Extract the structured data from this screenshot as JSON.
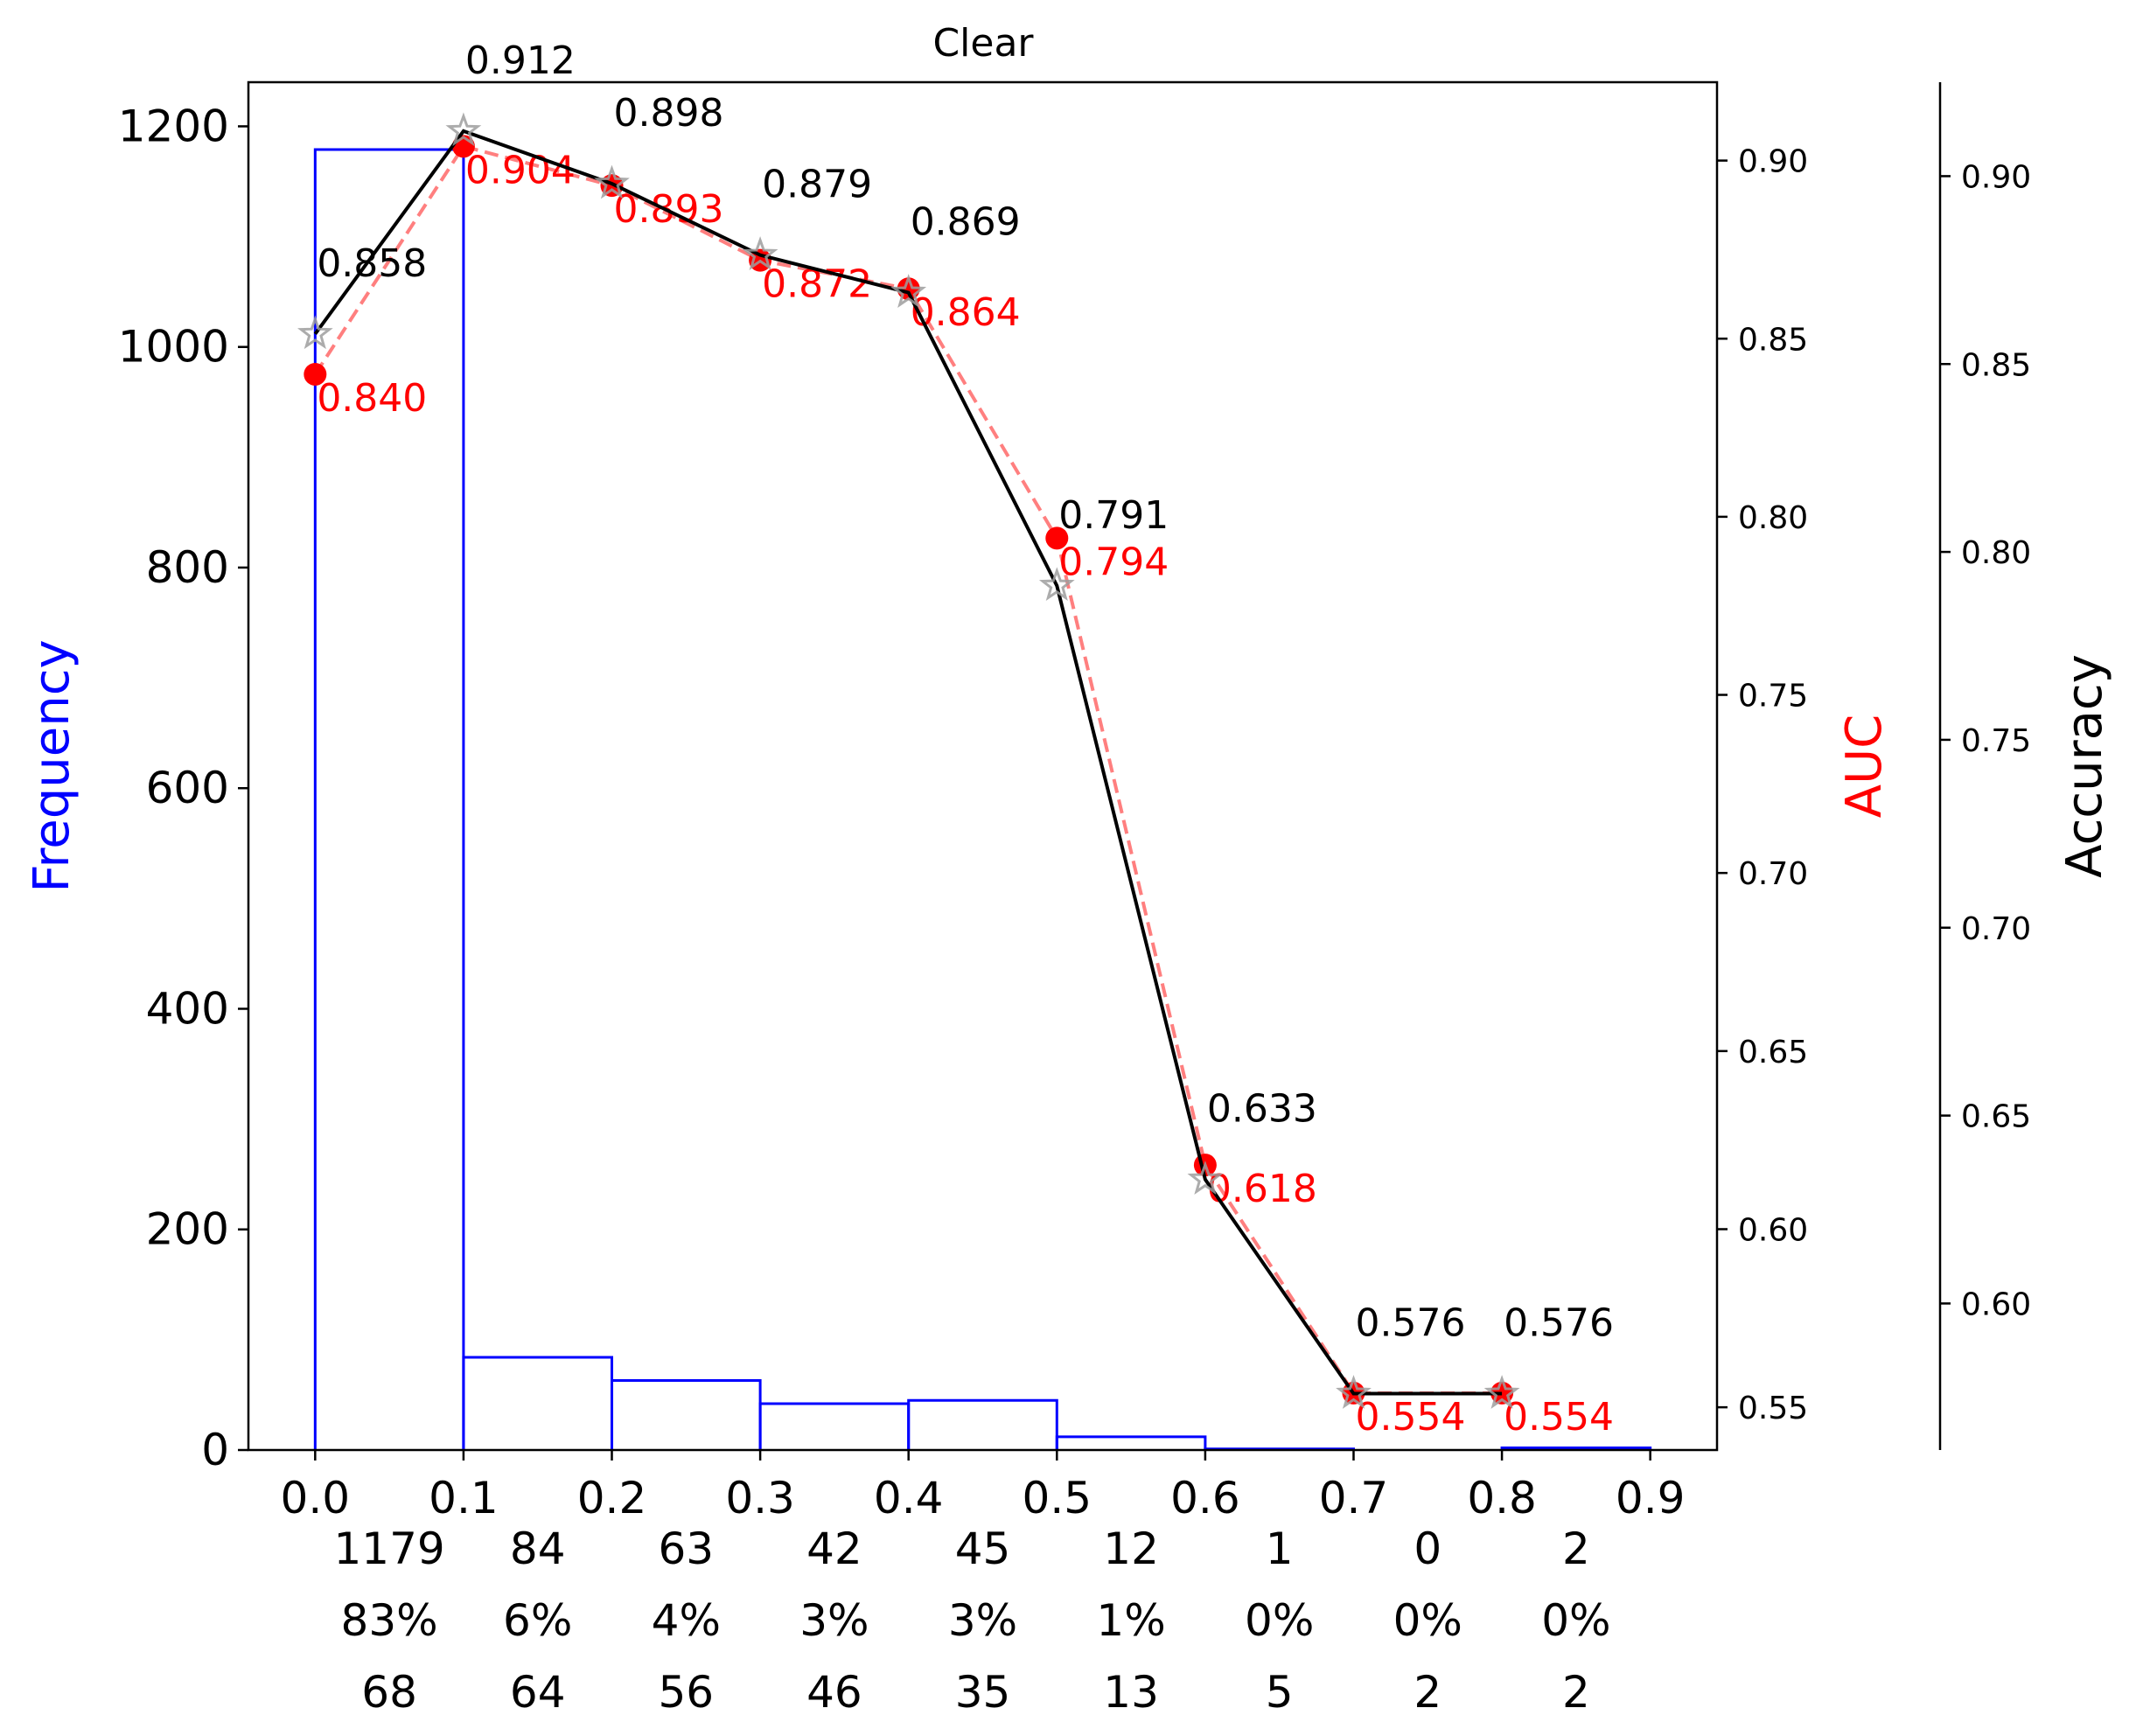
{
  "chart_data": {
    "type": "bar",
    "title": "Clear",
    "xlabel": "",
    "x_ticks": [
      "0.0",
      "0.1",
      "0.2",
      "0.3",
      "0.4",
      "0.5",
      "0.6",
      "0.7",
      "0.8",
      "0.9"
    ],
    "xlim": [
      -0.045,
      0.945
    ],
    "bins": [
      {
        "left": 0.0,
        "right": 0.1,
        "frequency": 1179
      },
      {
        "left": 0.1,
        "right": 0.2,
        "frequency": 84
      },
      {
        "left": 0.2,
        "right": 0.3,
        "frequency": 63
      },
      {
        "left": 0.3,
        "right": 0.4,
        "frequency": 42
      },
      {
        "left": 0.4,
        "right": 0.5,
        "frequency": 45
      },
      {
        "left": 0.5,
        "right": 0.6,
        "frequency": 12
      },
      {
        "left": 0.6,
        "right": 0.7,
        "frequency": 1
      },
      {
        "left": 0.7,
        "right": 0.8,
        "frequency": 0
      },
      {
        "left": 0.8,
        "right": 0.9,
        "frequency": 2
      }
    ],
    "frequency_axis": {
      "label": "Frequency",
      "ylim": [
        0,
        1240
      ],
      "ticks": [
        0,
        200,
        400,
        600,
        800,
        1000,
        1200
      ]
    },
    "auc_axis": {
      "label": "AUC",
      "ylim": [
        0.538,
        0.922
      ],
      "ticks": [
        "0.55",
        "0.60",
        "0.65",
        "0.70",
        "0.75",
        "0.80",
        "0.85",
        "0.90"
      ]
    },
    "accuracy_axis": {
      "label": "Accuracy",
      "ylim": [
        0.561,
        0.925
      ],
      "ticks": [
        "0.60",
        "0.65",
        "0.70",
        "0.75",
        "0.80",
        "0.85",
        "0.90"
      ]
    },
    "series": [
      {
        "name": "AUC",
        "color": "#ff0000",
        "style": "dashed line with circle markers",
        "x": [
          0.0,
          0.1,
          0.2,
          0.3,
          0.4,
          0.5,
          0.6,
          0.7,
          0.8
        ],
        "values": [
          0.84,
          0.904,
          0.893,
          0.872,
          0.864,
          0.794,
          0.618,
          0.554,
          0.554
        ],
        "labels": [
          "0.840",
          "0.904",
          "0.893",
          "0.872",
          "0.864",
          "0.794",
          "0.618",
          "0.554",
          "0.554"
        ]
      },
      {
        "name": "Accuracy",
        "color": "#000000",
        "style": "solid line with star markers",
        "x": [
          0.0,
          0.1,
          0.2,
          0.3,
          0.4,
          0.5,
          0.6,
          0.7,
          0.8
        ],
        "values": [
          0.858,
          0.912,
          0.898,
          0.879,
          0.869,
          0.791,
          0.633,
          0.576,
          0.576
        ],
        "labels": [
          "0.858",
          "0.912",
          "0.898",
          "0.879",
          "0.869",
          "0.791",
          "0.633",
          "0.576",
          "0.576"
        ]
      }
    ],
    "bin_annotations": {
      "counts": [
        "1179",
        "84",
        "63",
        "42",
        "45",
        "12",
        "1",
        "0",
        "2"
      ],
      "percentages": [
        "83%",
        "6%",
        "4%",
        "3%",
        "3%",
        "1%",
        "0%",
        "0%",
        "0%"
      ],
      "third_row": [
        "68",
        "64",
        "56",
        "46",
        "35",
        "13",
        "5",
        "2",
        "2"
      ]
    },
    "grid": false,
    "colors": {
      "histogram": "#0000ff",
      "auc": "#ff0000",
      "accuracy": "#000000",
      "star_marker": "#9e9e9e"
    }
  }
}
